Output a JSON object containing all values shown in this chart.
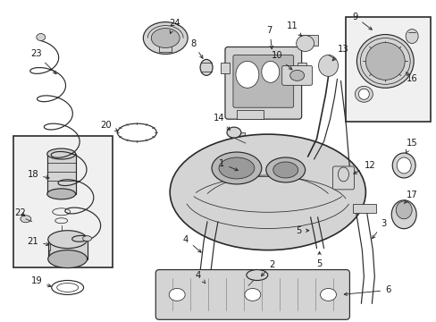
{
  "background_color": "#ffffff",
  "line_color": "#2a2a2a",
  "label_color": "#1a1a1a",
  "figsize": [
    4.89,
    3.6
  ],
  "dpi": 100,
  "fs": 7.2,
  "lw_thin": 0.55,
  "lw_med": 0.85,
  "lw_thick": 1.2,
  "gray_fill": "#d4d4d4",
  "gray_mid": "#b8b8b8",
  "gray_dark": "#9a9a9a",
  "box_fill": "#f0f0f0"
}
